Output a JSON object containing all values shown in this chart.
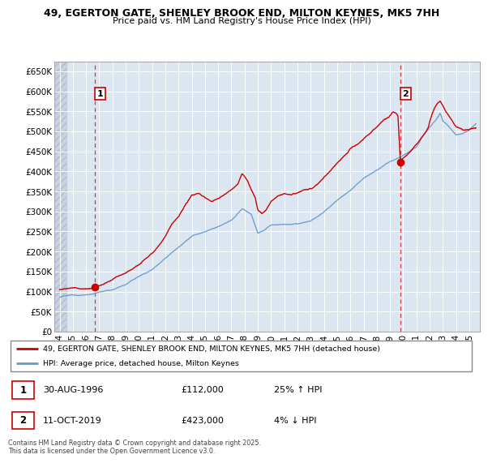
{
  "title_line1": "49, EGERTON GATE, SHENLEY BROOK END, MILTON KEYNES, MK5 7HH",
  "title_line2": "Price paid vs. HM Land Registry's House Price Index (HPI)",
  "ylabel_ticks": [
    "£0",
    "£50K",
    "£100K",
    "£150K",
    "£200K",
    "£250K",
    "£300K",
    "£350K",
    "£400K",
    "£450K",
    "£500K",
    "£550K",
    "£600K",
    "£650K"
  ],
  "ytick_values": [
    0,
    50000,
    100000,
    150000,
    200000,
    250000,
    300000,
    350000,
    400000,
    450000,
    500000,
    550000,
    600000,
    650000
  ],
  "ylim": [
    0,
    675000
  ],
  "xlim_start": 1993.6,
  "xlim_end": 2025.8,
  "xticks": [
    1994,
    1995,
    1996,
    1997,
    1998,
    1999,
    2000,
    2001,
    2002,
    2003,
    2004,
    2005,
    2006,
    2007,
    2008,
    2009,
    2010,
    2011,
    2012,
    2013,
    2014,
    2015,
    2016,
    2017,
    2018,
    2019,
    2020,
    2021,
    2022,
    2023,
    2024,
    2025
  ],
  "purchase1_x": 1996.66,
  "purchase1_y": 112000,
  "purchase1_label": "1",
  "purchase2_x": 2019.78,
  "purchase2_y": 423000,
  "purchase2_label": "2",
  "red_line_color": "#cc0000",
  "blue_line_color": "#6699cc",
  "bg_plot_color": "#dce6f1",
  "grid_color": "#ffffff",
  "hatch_color": "#c8d4e3",
  "legend_label_red": "49, EGERTON GATE, SHENLEY BROOK END, MILTON KEYNES, MK5 7HH (detached house)",
  "legend_label_blue": "HPI: Average price, detached house, Milton Keynes",
  "annotation1_date": "30-AUG-1996",
  "annotation1_price": "£112,000",
  "annotation1_hpi": "25% ↑ HPI",
  "annotation2_date": "11-OCT-2019",
  "annotation2_price": "£423,000",
  "annotation2_hpi": "4% ↓ HPI",
  "footer": "Contains HM Land Registry data © Crown copyright and database right 2025.\nThis data is licensed under the Open Government Licence v3.0."
}
